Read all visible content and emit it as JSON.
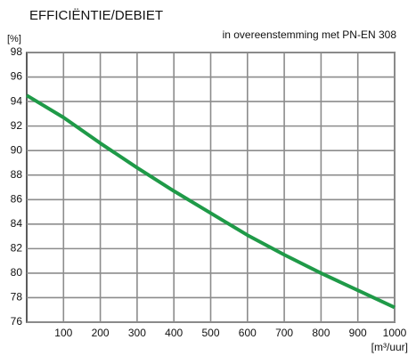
{
  "chart_data": {
    "type": "line",
    "title": "EFFICIËNTIE/DEBIET",
    "subtitle": "in overeenstemming met PN-EN 308",
    "y_label": "[%]",
    "x_label": "[m³/uur]",
    "x": [
      0,
      100,
      200,
      300,
      400,
      500,
      600,
      700,
      800,
      900,
      1000
    ],
    "series": [
      {
        "name": "Efficiëntie",
        "color": "#1f9a48",
        "values": [
          94.5,
          92.7,
          90.6,
          88.6,
          86.7,
          84.9,
          83.1,
          81.5,
          80.0,
          78.6,
          77.2
        ]
      }
    ],
    "xlim": [
      0,
      1000
    ],
    "xticks": [
      100,
      200,
      300,
      400,
      500,
      600,
      700,
      800,
      900,
      1000
    ],
    "ylim": [
      76,
      98
    ],
    "yticks": [
      76,
      78,
      80,
      82,
      84,
      86,
      88,
      90,
      92,
      94,
      96,
      98
    ],
    "grid": true
  }
}
